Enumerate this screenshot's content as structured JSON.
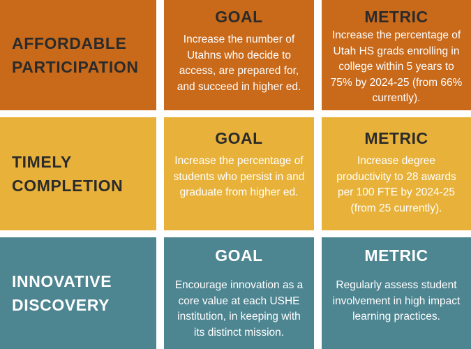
{
  "colors": {
    "row1": "#c9691a",
    "row2": "#e8b23a",
    "row3": "#4d8591"
  },
  "rows": [
    {
      "category": "AFFORDABLE\nPARTICIPATION",
      "goal_heading": "GOAL",
      "goal_text": "Increase the number of\nUtahns who decide to\naccess, are prepared for,\nand succeed in higher ed.",
      "metric_heading": "METRIC",
      "metric_text": "Increase the percentage of\nUtah HS grads enrolling in\ncollege within 5 years to\n75% by 2024-25 (from 66%\ncurrently)."
    },
    {
      "category": "TIMELY\nCOMPLETION",
      "goal_heading": "GOAL",
      "goal_text": "Increase the percentage of\nstudents who persist in and\ngraduate from higher ed.",
      "metric_heading": "METRIC",
      "metric_text": "Increase degree\nproductivity to 28 awards\nper 100 FTE by 2024-25\n(from 25 currently)."
    },
    {
      "category": "INNOVATIVE\nDISCOVERY",
      "goal_heading": "GOAL",
      "goal_text": "Encourage innovation as a\ncore value at each USHE\ninstitution, in keeping with\nits distinct mission.",
      "metric_heading": "METRIC",
      "metric_text": "Regularly assess student\ninvolvement in high impact\nlearning practices."
    }
  ]
}
